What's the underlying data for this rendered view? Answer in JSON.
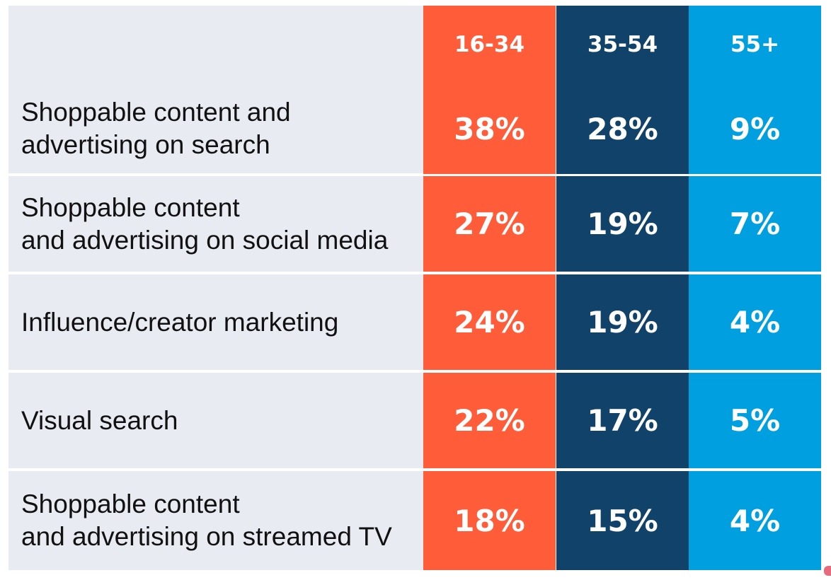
{
  "chart_data": {
    "type": "table",
    "columns": [
      {
        "label": "16-34",
        "color": "#ff5c39"
      },
      {
        "label": "35-54",
        "color": "#11426a"
      },
      {
        "label": "55+",
        "color": "#00a0e0"
      }
    ],
    "rows": [
      {
        "label": "Shoppable content and\nadvertising on search",
        "values": [
          "38%",
          "28%",
          "9%"
        ]
      },
      {
        "label": "Shoppable content\nand advertising on social media",
        "values": [
          "27%",
          "19%",
          "7%"
        ]
      },
      {
        "label": "Influence/creator marketing",
        "values": [
          "24%",
          "19%",
          "4%"
        ]
      },
      {
        "label": "Visual search",
        "values": [
          "22%",
          "17%",
          "5%"
        ]
      },
      {
        "label": "Shoppable content\nand advertising on streamed TV",
        "values": [
          "18%",
          "15%",
          "4%"
        ]
      }
    ],
    "label_background": "#e8ebf1",
    "divider_color": "#ffffff"
  }
}
